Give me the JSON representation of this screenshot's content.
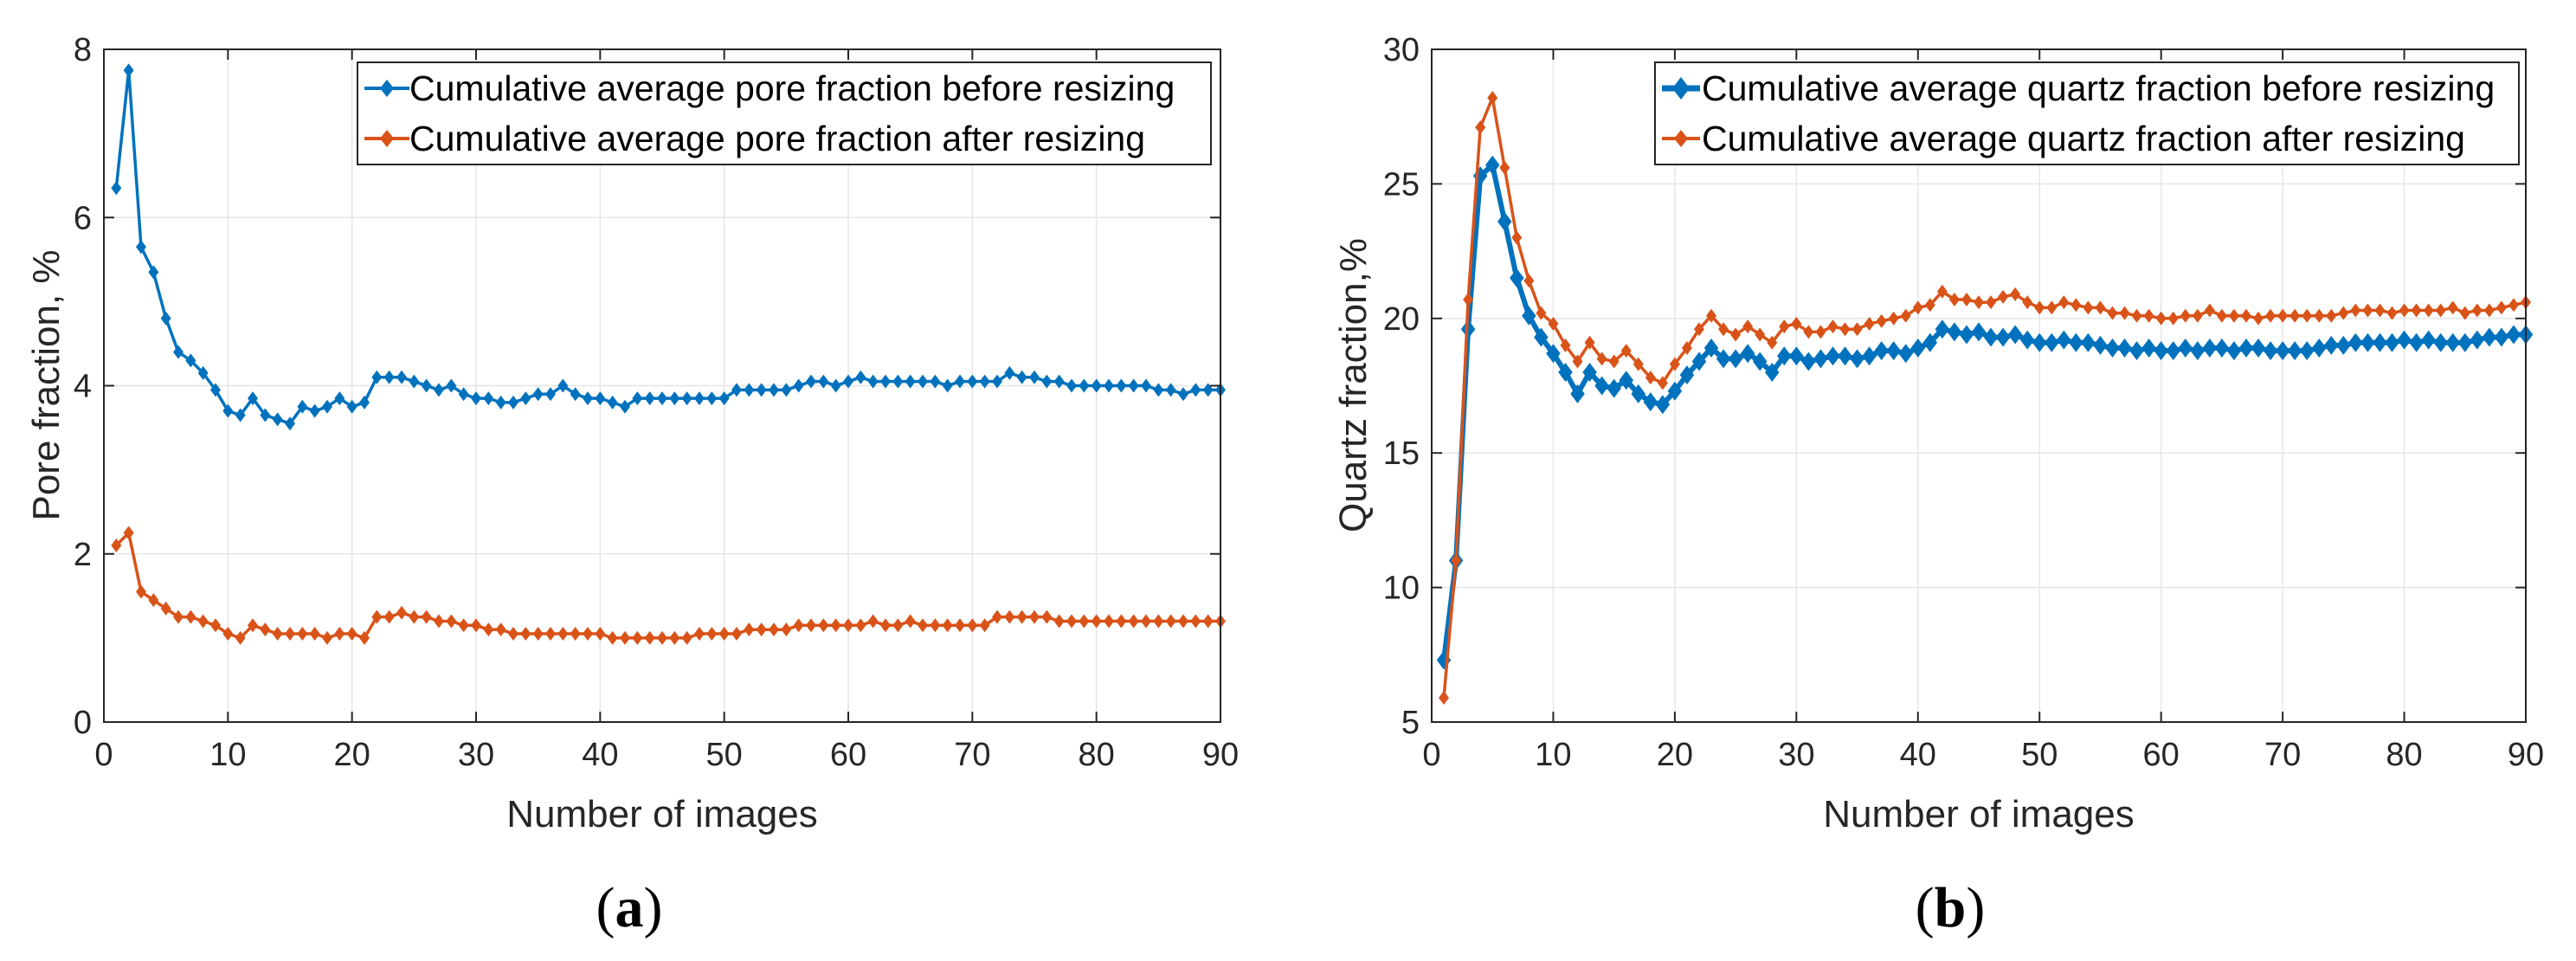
{
  "colors": {
    "blue": "#0072BD",
    "orange": "#D95319",
    "grid": "#e6e6e6",
    "axis": "#262626"
  },
  "chart_data": [
    {
      "type": "line",
      "caption_letter": "a",
      "xlabel": "Number of images",
      "ylabel": "Pore fraction, %",
      "xlim": [
        0,
        90
      ],
      "ylim": [
        0,
        8
      ],
      "xticks": [
        0,
        10,
        20,
        30,
        40,
        50,
        60,
        70,
        80,
        90
      ],
      "yticks": [
        0,
        2,
        4,
        6,
        8
      ],
      "grid": true,
      "legend_position": "top-right",
      "series": [
        {
          "name": "Cumulative average pore fraction before resizing",
          "color": "blue",
          "marker": "diamond",
          "values": [
            6.35,
            7.75,
            5.65,
            5.35,
            4.8,
            4.4,
            4.3,
            4.15,
            3.95,
            3.7,
            3.65,
            3.85,
            3.65,
            3.6,
            3.55,
            3.75,
            3.7,
            3.75,
            3.85,
            3.75,
            3.8,
            4.1,
            4.1,
            4.1,
            4.05,
            4.0,
            3.95,
            4.0,
            3.9,
            3.85,
            3.85,
            3.8,
            3.8,
            3.85,
            3.9,
            3.9,
            4.0,
            3.9,
            3.85,
            3.85,
            3.8,
            3.75,
            3.85,
            3.85,
            3.85,
            3.85,
            3.85,
            3.85,
            3.85,
            3.85,
            3.95,
            3.95,
            3.95,
            3.95,
            3.95,
            4.0,
            4.05,
            4.05,
            4.0,
            4.05,
            4.1,
            4.05,
            4.05,
            4.05,
            4.05,
            4.05,
            4.05,
            4.0,
            4.05,
            4.05,
            4.05,
            4.05,
            4.15,
            4.1,
            4.1,
            4.05,
            4.05,
            4.0,
            4.0,
            4.0,
            4.0,
            4.0,
            4.0,
            4.0,
            3.95,
            3.95,
            3.9,
            3.95,
            3.95,
            3.95
          ]
        },
        {
          "name": "Cumulative average pore fraction after resizing",
          "color": "orange",
          "marker": "diamond",
          "values": [
            2.1,
            2.25,
            1.55,
            1.45,
            1.35,
            1.25,
            1.25,
            1.2,
            1.15,
            1.05,
            1.0,
            1.15,
            1.1,
            1.05,
            1.05,
            1.05,
            1.05,
            1.0,
            1.05,
            1.05,
            1.0,
            1.25,
            1.25,
            1.3,
            1.25,
            1.25,
            1.2,
            1.2,
            1.15,
            1.15,
            1.1,
            1.1,
            1.05,
            1.05,
            1.05,
            1.05,
            1.05,
            1.05,
            1.05,
            1.05,
            1.0,
            1.0,
            1.0,
            1.0,
            1.0,
            1.0,
            1.0,
            1.05,
            1.05,
            1.05,
            1.05,
            1.1,
            1.1,
            1.1,
            1.1,
            1.15,
            1.15,
            1.15,
            1.15,
            1.15,
            1.15,
            1.2,
            1.15,
            1.15,
            1.2,
            1.15,
            1.15,
            1.15,
            1.15,
            1.15,
            1.15,
            1.25,
            1.25,
            1.25,
            1.25,
            1.25,
            1.2,
            1.2,
            1.2,
            1.2,
            1.2,
            1.2,
            1.2,
            1.2,
            1.2,
            1.2,
            1.2,
            1.2,
            1.2,
            1.2
          ]
        }
      ]
    },
    {
      "type": "line",
      "caption_letter": "b",
      "xlabel": "Number of images",
      "ylabel": "Quartz fraction,%",
      "xlim": [
        0,
        90
      ],
      "ylim": [
        5,
        30
      ],
      "xticks": [
        0,
        10,
        20,
        30,
        40,
        50,
        60,
        70,
        80,
        90
      ],
      "yticks": [
        5,
        10,
        15,
        20,
        25,
        30
      ],
      "grid": true,
      "legend_position": "top-right",
      "series": [
        {
          "name": "Cumulative average quartz fraction before resizing",
          "color": "blue",
          "marker": "diamond",
          "values": [
            7.3,
            11.0,
            19.6,
            25.3,
            25.7,
            23.6,
            21.5,
            20.1,
            19.3,
            18.7,
            18.0,
            17.2,
            18.0,
            17.5,
            17.4,
            17.7,
            17.2,
            16.9,
            16.8,
            17.3,
            17.9,
            18.4,
            18.9,
            18.5,
            18.5,
            18.7,
            18.4,
            18.0,
            18.6,
            18.6,
            18.4,
            18.5,
            18.6,
            18.6,
            18.5,
            18.6,
            18.8,
            18.8,
            18.7,
            18.9,
            19.1,
            19.6,
            19.5,
            19.4,
            19.5,
            19.3,
            19.3,
            19.4,
            19.2,
            19.1,
            19.1,
            19.2,
            19.1,
            19.1,
            19.0,
            18.9,
            18.9,
            18.8,
            18.9,
            18.8,
            18.8,
            18.9,
            18.8,
            18.9,
            18.9,
            18.8,
            18.9,
            18.9,
            18.8,
            18.8,
            18.8,
            18.8,
            18.9,
            19.0,
            19.0,
            19.1,
            19.1,
            19.1,
            19.1,
            19.2,
            19.1,
            19.2,
            19.1,
            19.1,
            19.1,
            19.2,
            19.3,
            19.3,
            19.4,
            19.4
          ]
        },
        {
          "name": "Cumulative average quartz fraction after resizing",
          "color": "orange",
          "marker": "diamond",
          "values": [
            5.9,
            11.0,
            20.7,
            27.1,
            28.2,
            25.6,
            23.0,
            21.4,
            20.2,
            19.8,
            19.0,
            18.4,
            19.1,
            18.5,
            18.4,
            18.8,
            18.3,
            17.8,
            17.6,
            18.3,
            18.9,
            19.6,
            20.1,
            19.6,
            19.4,
            19.7,
            19.4,
            19.1,
            19.7,
            19.8,
            19.5,
            19.5,
            19.7,
            19.6,
            19.6,
            19.8,
            19.9,
            20.0,
            20.1,
            20.4,
            20.5,
            21.0,
            20.7,
            20.7,
            20.6,
            20.6,
            20.8,
            20.9,
            20.6,
            20.4,
            20.4,
            20.6,
            20.5,
            20.4,
            20.4,
            20.2,
            20.2,
            20.1,
            20.1,
            20.0,
            20.0,
            20.1,
            20.1,
            20.3,
            20.1,
            20.1,
            20.1,
            20.0,
            20.1,
            20.1,
            20.1,
            20.1,
            20.1,
            20.1,
            20.2,
            20.3,
            20.3,
            20.3,
            20.2,
            20.3,
            20.3,
            20.3,
            20.3,
            20.4,
            20.2,
            20.3,
            20.3,
            20.4,
            20.5,
            20.6
          ]
        }
      ]
    }
  ]
}
